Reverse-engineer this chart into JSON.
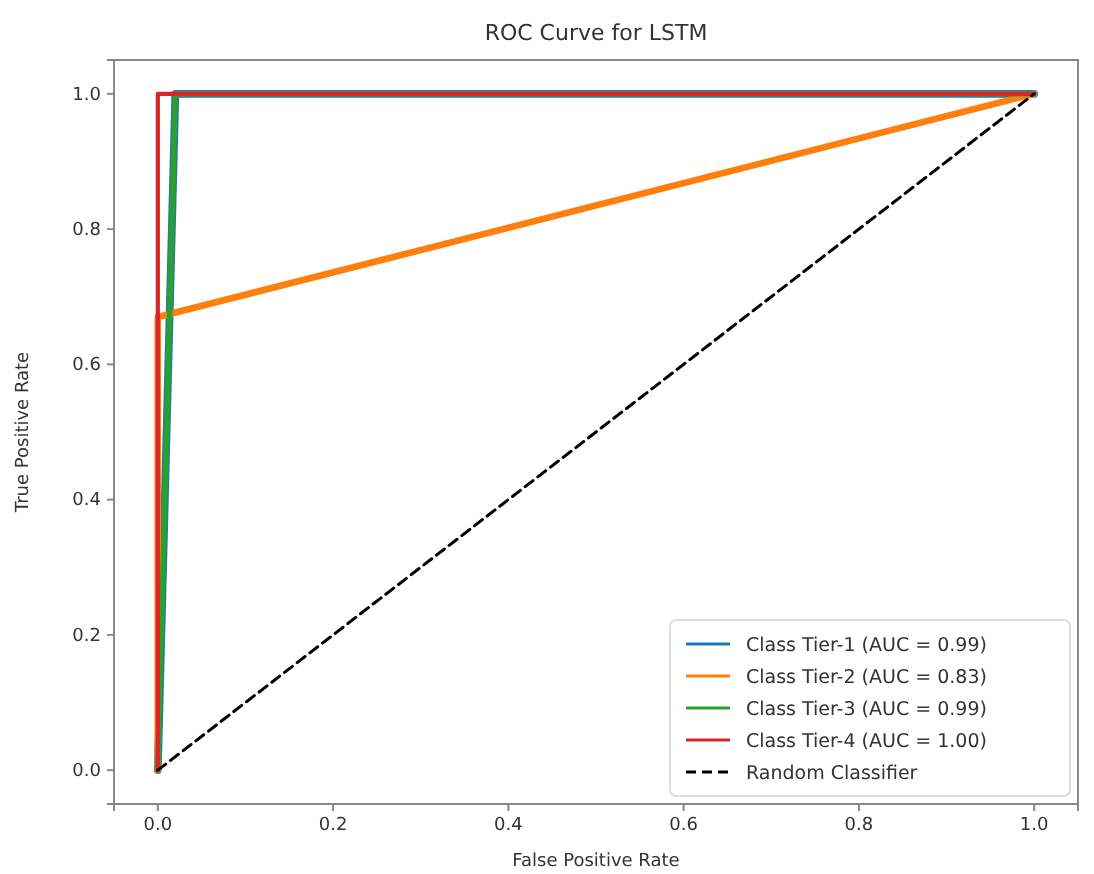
{
  "chart_data": {
    "type": "line",
    "title": "ROC Curve for LSTM",
    "xlabel": "False Positive Rate",
    "ylabel": "True Positive Rate",
    "xlim": [
      -0.05,
      1.05
    ],
    "ylim": [
      -0.05,
      1.05
    ],
    "xticks": [
      {
        "value": 0,
        "label": "0.0"
      },
      0.2,
      0.4,
      0.6,
      0.8,
      {
        "value": 1,
        "label": "1.0"
      }
    ],
    "yticks": [
      {
        "value": 0,
        "label": "0.0"
      },
      0.2,
      0.4,
      0.6,
      0.8,
      {
        "value": 1,
        "label": "1.0"
      }
    ],
    "grid": false,
    "legend": "bottom right",
    "marker": "none",
    "series": [
      {
        "name": "Class Tier-1 (AUC = 0.99)",
        "color": "#1f77b4",
        "x": [
          0,
          0.02,
          1
        ],
        "values": [
          0,
          1,
          1
        ]
      },
      {
        "name": "Class Tier-2 (AUC = 0.83)",
        "color": "#ff7f0e",
        "x": [
          0,
          0,
          1
        ],
        "values": [
          0,
          0.67,
          1
        ]
      },
      {
        "name": "Class Tier-3 (AUC = 0.99)",
        "color": "#2ca02c",
        "x": [
          0,
          0.02,
          1
        ],
        "values": [
          0,
          1,
          1
        ]
      },
      {
        "name": "Class Tier-4 (AUC = 1.00)",
        "color": "#d62728",
        "x": [
          0,
          0,
          1
        ],
        "values": [
          0,
          1,
          1
        ]
      },
      {
        "name": "Random Classifier",
        "color": "#000000",
        "x": [
          0,
          1
        ],
        "values": [
          0,
          1
        ],
        "line_style": "dashed"
      }
    ]
  }
}
